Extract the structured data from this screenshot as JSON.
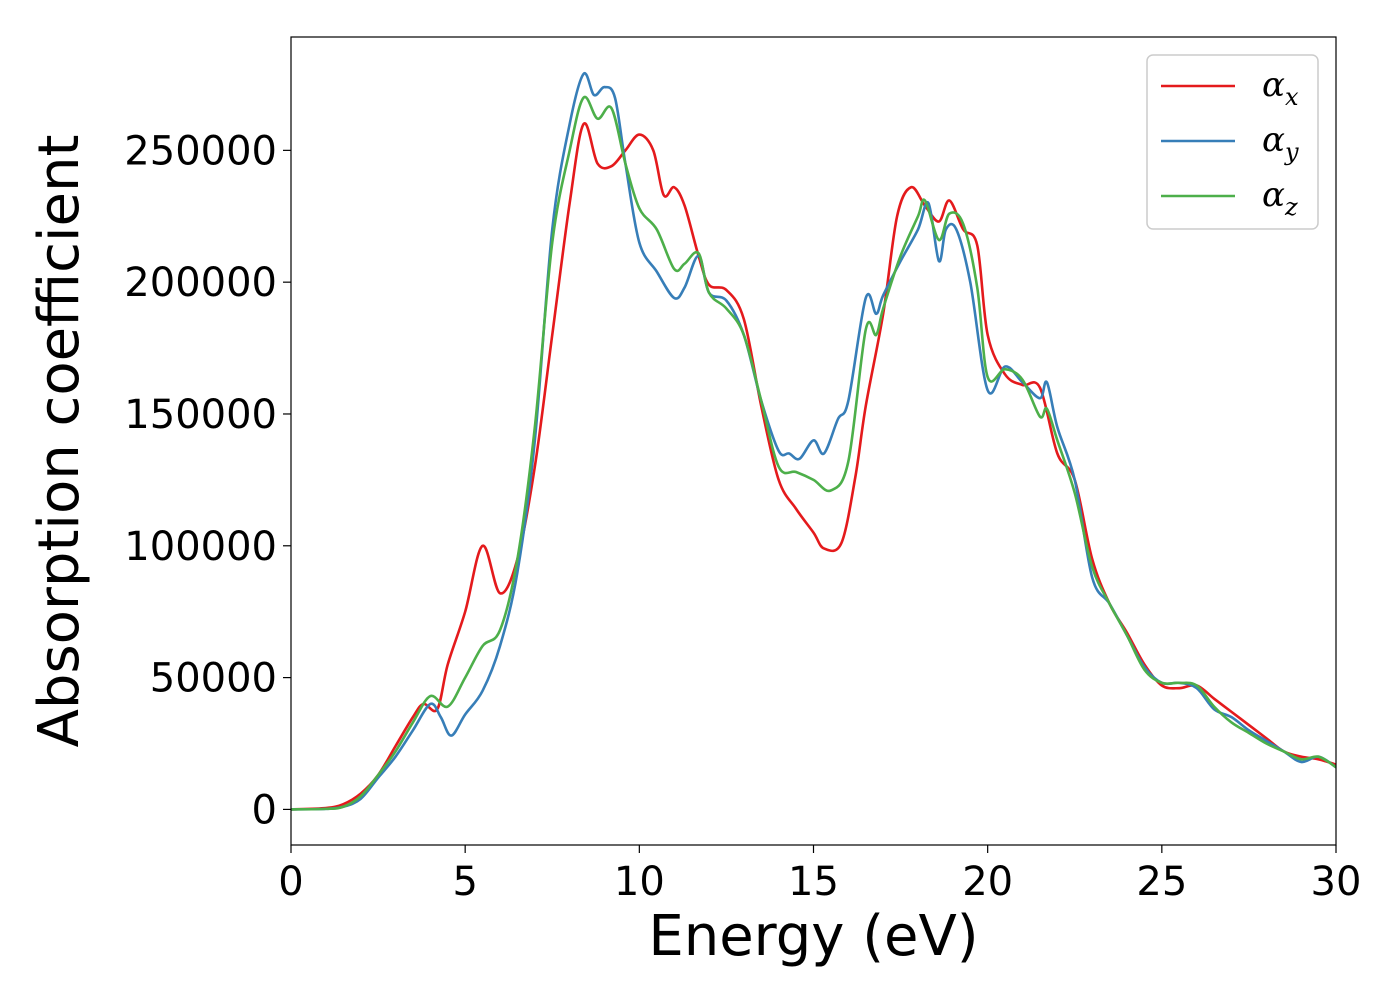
{
  "chart_data": {
    "type": "line",
    "title": "",
    "xlabel": "Energy (eV)",
    "ylabel": "Absorption coefficient",
    "xlim": [
      0,
      30
    ],
    "ylim": [
      -13500,
      293000
    ],
    "xticks": [
      0,
      5,
      10,
      15,
      20,
      25,
      30
    ],
    "yticks": [
      0,
      50000,
      100000,
      150000,
      200000,
      250000
    ],
    "grid": false,
    "legend_position": "top-right",
    "series": [
      {
        "name": "α_x",
        "legend_main": "α",
        "legend_sub": "x",
        "color": "#e41a1c",
        "x": [
          0,
          1,
          1.5,
          2,
          2.5,
          3,
          3.5,
          3.8,
          4.2,
          4.5,
          5,
          5.5,
          6,
          6.5,
          7,
          7.5,
          8,
          8.4,
          8.8,
          9.2,
          9.6,
          10,
          10.4,
          10.7,
          11,
          11.3,
          11.7,
          12,
          12.5,
          13,
          13.5,
          14,
          14.5,
          15,
          15.3,
          15.8,
          16.2,
          16.5,
          17,
          17.4,
          17.8,
          18.2,
          18.6,
          18.9,
          19.3,
          19.7,
          20,
          20.5,
          21,
          21.5,
          22,
          22.5,
          23,
          23.5,
          24,
          24.5,
          25,
          25.5,
          26,
          26.5,
          27,
          27.5,
          28,
          28.5,
          29,
          29.5,
          30
        ],
        "y": [
          0,
          500,
          2000,
          6000,
          13000,
          24000,
          35000,
          40000,
          38000,
          55000,
          75000,
          100000,
          82000,
          95000,
          130000,
          180000,
          230000,
          260000,
          245000,
          244000,
          250000,
          256000,
          250000,
          233000,
          236000,
          229000,
          210000,
          199000,
          197000,
          186000,
          153000,
          125000,
          114000,
          105000,
          99000,
          101000,
          126000,
          153000,
          188000,
          225000,
          236000,
          229000,
          223000,
          231000,
          220000,
          214000,
          180000,
          165000,
          161000,
          160000,
          135000,
          125000,
          95000,
          78000,
          67000,
          55000,
          47000,
          46000,
          47000,
          42000,
          37000,
          32000,
          27000,
          22000,
          20000,
          19000,
          17000
        ]
      },
      {
        "name": "α_y",
        "legend_main": "α",
        "legend_sub": "y",
        "color": "#377eb8",
        "x": [
          0,
          1,
          1.5,
          2,
          2.5,
          3,
          3.5,
          4,
          4.3,
          4.6,
          5,
          5.5,
          6,
          6.5,
          7,
          7.5,
          8,
          8.4,
          8.7,
          9,
          9.3,
          9.6,
          10,
          10.5,
          11,
          11.3,
          11.7,
          12,
          12.5,
          13,
          13.5,
          14,
          14.3,
          14.6,
          15,
          15.3,
          15.7,
          16,
          16.5,
          16.8,
          17,
          17.5,
          18,
          18.3,
          18.6,
          18.8,
          19.1,
          19.5,
          20,
          20.5,
          21,
          21.5,
          21.7,
          22,
          22.5,
          23,
          23.5,
          24,
          24.5,
          25,
          25.5,
          26,
          26.5,
          27,
          27.5,
          28,
          28.5,
          29,
          29.5,
          30
        ],
        "y": [
          0,
          200,
          1000,
          4000,
          12000,
          20000,
          30000,
          40000,
          35000,
          28000,
          36000,
          45000,
          62000,
          90000,
          140000,
          220000,
          260000,
          279000,
          271000,
          274000,
          270000,
          245000,
          215000,
          204000,
          194000,
          198000,
          210000,
          196000,
          193000,
          180000,
          155000,
          136000,
          135000,
          133000,
          140000,
          135000,
          148000,
          155000,
          194000,
          188000,
          195000,
          208000,
          220000,
          230000,
          208000,
          220000,
          220000,
          200000,
          159000,
          168000,
          162000,
          156000,
          162000,
          145000,
          125000,
          88000,
          78000,
          66000,
          54000,
          48000,
          48000,
          46000,
          38000,
          35000,
          30000,
          26000,
          22000,
          18000,
          20000,
          16000
        ]
      },
      {
        "name": "α_z",
        "legend_main": "α",
        "legend_sub": "z",
        "color": "#4daf4a",
        "x": [
          0,
          1,
          1.5,
          2,
          2.5,
          3,
          3.5,
          4,
          4.5,
          5,
          5.5,
          6,
          6.5,
          7,
          7.5,
          8,
          8.4,
          8.8,
          9.2,
          9.6,
          10,
          10.5,
          11,
          11.3,
          11.7,
          12,
          12.5,
          13,
          13.5,
          14,
          14.5,
          15,
          15.5,
          16,
          16.5,
          16.8,
          17,
          17.5,
          18,
          18.2,
          18.6,
          18.9,
          19.3,
          19.7,
          20,
          20.5,
          21,
          21.5,
          21.7,
          22,
          22.5,
          23,
          23.5,
          24,
          24.5,
          25,
          25.5,
          26,
          26.5,
          27,
          27.5,
          28,
          28.5,
          29,
          29.5,
          30
        ],
        "y": [
          0,
          200,
          1000,
          5000,
          13000,
          22000,
          33000,
          43000,
          39000,
          50000,
          62000,
          68000,
          95000,
          145000,
          215000,
          250000,
          270000,
          262000,
          266000,
          245000,
          228000,
          220000,
          205000,
          207000,
          211000,
          196000,
          190000,
          180000,
          155000,
          130000,
          128000,
          125000,
          121000,
          132000,
          182000,
          180000,
          190000,
          210000,
          225000,
          231000,
          216000,
          226000,
          222000,
          198000,
          164000,
          167000,
          163000,
          149000,
          152000,
          140000,
          120000,
          92000,
          78000,
          66000,
          53000,
          48000,
          48000,
          47000,
          39000,
          33000,
          29000,
          25000,
          22000,
          19000,
          20000,
          16000
        ]
      }
    ]
  }
}
